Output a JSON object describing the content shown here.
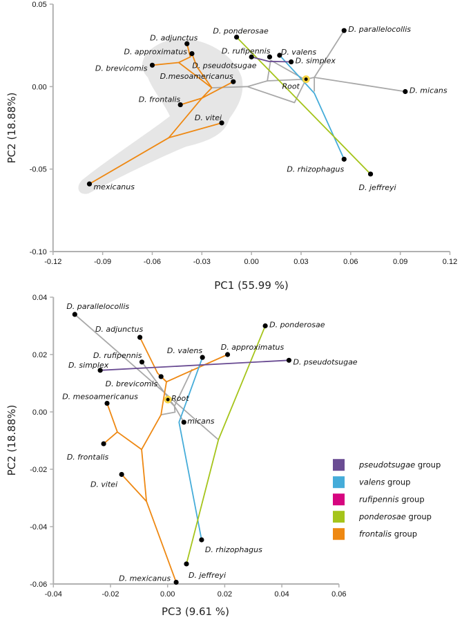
{
  "colors": {
    "pseudotsugae": "#6a4c93",
    "valens": "#45acd9",
    "rufipennis": "#d6067f",
    "ponderosae": "#a5c41a",
    "frontalis": "#ee8812",
    "other": "#a8a8a8",
    "root": "#f5d443",
    "axis": "#b0b0b0",
    "highlight": "#e6e6e6"
  },
  "legend": [
    {
      "italic": "pseudotsugae",
      "suffix": " group",
      "color": "#6a4c93"
    },
    {
      "italic": "valens",
      "suffix": " group",
      "color": "#45acd9"
    },
    {
      "italic": "rufipennis",
      "suffix": " group",
      "color": "#d6067f"
    },
    {
      "italic": "ponderosae",
      "suffix": " group",
      "color": "#a5c41a"
    },
    {
      "italic": "frontalis",
      "suffix": " group",
      "color": "#ee8812"
    }
  ],
  "chart_data": [
    {
      "type": "scatter",
      "subtype": "phylomorphospace",
      "xlabel": "PC1 (55.99 %)",
      "ylabel": "PC2 (18.88%)",
      "xlim": [
        -0.12,
        0.12
      ],
      "ylim": [
        -0.1,
        0.05
      ],
      "xticks": [
        "-0.12",
        "-0.09",
        "-0.06",
        "-0.03",
        "0.00",
        "0.03",
        "0.06",
        "0.09",
        "0.12"
      ],
      "yticks": [
        "0.05",
        "0.00",
        "-0.05",
        "-0.10"
      ],
      "grid": false,
      "shaded_region": "frontalis group",
      "tips": [
        {
          "id": "adjunctus",
          "label": "D. adjunctus",
          "x": -0.039,
          "y": 0.026
        },
        {
          "id": "approximatus",
          "label": "D. approximatus",
          "x": -0.036,
          "y": 0.02
        },
        {
          "id": "brevicomis",
          "label": "D. brevicomis",
          "x": -0.06,
          "y": 0.013
        },
        {
          "id": "mesoamericanus",
          "label": "D.mesoamericanus",
          "x": -0.011,
          "y": 0.003
        },
        {
          "id": "frontalis",
          "label": "D. frontalis",
          "x": -0.043,
          "y": -0.011
        },
        {
          "id": "vitei",
          "label": "D. vitei",
          "x": -0.018,
          "y": -0.022
        },
        {
          "id": "mexicanus",
          "label": "mexicanus",
          "x": -0.098,
          "y": -0.059
        },
        {
          "id": "ponderosae",
          "label": "D. ponderosae",
          "x": -0.009,
          "y": 0.03
        },
        {
          "id": "rufipennis",
          "label": "D. rufipennis",
          "x": 0.0,
          "y": 0.018
        },
        {
          "id": "pseudotsugae",
          "label": "D. pseudotsugae",
          "x": 0.011,
          "y": 0.018
        },
        {
          "id": "valens",
          "label": "D. valens",
          "x": 0.017,
          "y": 0.019
        },
        {
          "id": "simplex",
          "label": "D. simplex",
          "x": 0.024,
          "y": 0.015
        },
        {
          "id": "root",
          "label": "Root",
          "x": 0.033,
          "y": 0.0045
        },
        {
          "id": "parallelocollis",
          "label": "D. parallelocollis",
          "x": 0.056,
          "y": 0.034
        },
        {
          "id": "micans",
          "label": "D. micans",
          "x": 0.093,
          "y": -0.003
        },
        {
          "id": "rhizophagus",
          "label": "D. rhizophagus",
          "x": 0.056,
          "y": -0.044
        },
        {
          "id": "jeffreyi",
          "label": "D. jeffreyi",
          "x": 0.072,
          "y": -0.053
        }
      ],
      "branches": [
        {
          "group": "frontalis",
          "points": [
            [
              -0.06,
              0.013
            ],
            [
              -0.044,
              0.0146
            ],
            [
              -0.037,
              0.018
            ],
            [
              -0.039,
              0.026
            ]
          ]
        },
        {
          "group": "frontalis",
          "points": [
            [
              -0.037,
              0.018
            ],
            [
              -0.036,
              0.02
            ]
          ]
        },
        {
          "group": "frontalis",
          "points": [
            [
              -0.044,
              0.0146
            ],
            [
              -0.024,
              -0.0007
            ]
          ]
        },
        {
          "group": "frontalis",
          "points": [
            [
              -0.036,
              0.02
            ],
            [
              -0.033,
              0.012
            ],
            [
              -0.024,
              -0.0007
            ]
          ]
        },
        {
          "group": "frontalis",
          "points": [
            [
              -0.024,
              -0.0007
            ],
            [
              -0.03,
              -0.007
            ],
            [
              -0.043,
              -0.011
            ]
          ]
        },
        {
          "group": "frontalis",
          "points": [
            [
              -0.03,
              -0.007
            ],
            [
              -0.011,
              0.003
            ]
          ]
        },
        {
          "group": "frontalis",
          "points": [
            [
              -0.03,
              -0.007
            ],
            [
              -0.05,
              -0.031
            ],
            [
              -0.018,
              -0.022
            ]
          ]
        },
        {
          "group": "frontalis",
          "points": [
            [
              -0.05,
              -0.031
            ],
            [
              -0.098,
              -0.059
            ]
          ]
        },
        {
          "group": "other",
          "points": [
            [
              -0.024,
              -0.0007
            ],
            [
              -0.0025,
              0.0
            ],
            [
              0.0096,
              0.0035
            ],
            [
              0.0116,
              0.016
            ]
          ]
        },
        {
          "group": "other",
          "points": [
            [
              0.0096,
              0.0035
            ],
            [
              0.033,
              0.0045
            ],
            [
              0.038,
              0.0056
            ],
            [
              0.056,
              0.034
            ]
          ]
        },
        {
          "group": "other",
          "points": [
            [
              0.038,
              0.0056
            ],
            [
              0.093,
              -0.003
            ]
          ]
        },
        {
          "group": "other",
          "points": [
            [
              0.038,
              0.0056
            ],
            [
              0.038,
              -0.003
            ]
          ]
        },
        {
          "group": "other",
          "points": [
            [
              -0.0025,
              0.0
            ],
            [
              0.026,
              -0.0097
            ],
            [
              0.033,
              0.0045
            ]
          ]
        },
        {
          "group": "other",
          "points": [
            [
              0.0116,
              0.016
            ],
            [
              0.031,
              0.005
            ]
          ]
        },
        {
          "group": "pseudotsugae",
          "points": [
            [
              0.0,
              0.018
            ],
            [
              0.0105,
              0.0153
            ],
            [
              0.024,
              0.015
            ]
          ]
        },
        {
          "group": "valens",
          "points": [
            [
              0.017,
              0.019
            ],
            [
              0.038,
              -0.004
            ],
            [
              0.056,
              -0.044
            ]
          ]
        },
        {
          "group": "ponderosae",
          "points": [
            [
              -0.009,
              0.03
            ],
            [
              0.072,
              -0.053
            ]
          ]
        }
      ]
    },
    {
      "type": "scatter",
      "subtype": "phylomorphospace",
      "xlabel": "PC3 (9.61 %)",
      "ylabel": "PC2 (18.88%)",
      "xlim": [
        -0.04,
        0.06
      ],
      "ylim": [
        -0.06,
        0.04
      ],
      "xticks": [
        "-0.04",
        "-0.02",
        "0.00",
        "0.02",
        "0.04",
        "0.06"
      ],
      "yticks": [
        "0.04",
        "0.02",
        "0.00",
        "-0.02",
        "-0.04",
        "-0.06"
      ],
      "grid": false,
      "legend_position": "right",
      "tips": [
        {
          "id": "parallelocollis",
          "label": "D. parallelocollis",
          "x": -0.0325,
          "y": 0.034
        },
        {
          "id": "adjunctus",
          "label": "D. adjunctus",
          "x": -0.0097,
          "y": 0.026
        },
        {
          "id": "rufipennis",
          "label": "D. rufipennis",
          "x": -0.009,
          "y": 0.0174
        },
        {
          "id": "simplex",
          "label": "D. simplex",
          "x": -0.0236,
          "y": 0.0145
        },
        {
          "id": "brevicomis",
          "label": "D. brevicomis",
          "x": -0.0023,
          "y": 0.0123
        },
        {
          "id": "valens",
          "label": "D. valens",
          "x": 0.0122,
          "y": 0.019
        },
        {
          "id": "approximatus",
          "label": "D. approximatus",
          "x": 0.021,
          "y": 0.02
        },
        {
          "id": "pseudotsugae",
          "label": "D. pseudotsugae",
          "x": 0.0425,
          "y": 0.018
        },
        {
          "id": "ponderosae",
          "label": "D. ponderosae",
          "x": 0.0342,
          "y": 0.03
        },
        {
          "id": "root",
          "label": "Root",
          "x": 0.0001,
          "y": 0.0043
        },
        {
          "id": "mesoamericanus",
          "label": "D. mesoamericanus",
          "x": -0.0212,
          "y": 0.003
        },
        {
          "id": "micans",
          "label": "micans",
          "x": 0.0057,
          "y": -0.0036
        },
        {
          "id": "frontalis",
          "label": "D. frontalis",
          "x": -0.0224,
          "y": -0.0111
        },
        {
          "id": "vitei",
          "label": "D. vitei",
          "x": -0.0161,
          "y": -0.0218
        },
        {
          "id": "rhizophagus",
          "label": "D. rhizophagus",
          "x": 0.0119,
          "y": -0.0446
        },
        {
          "id": "jeffreyi",
          "label": "D. jeffreyi",
          "x": 0.0066,
          "y": -0.053
        },
        {
          "id": "mexicanus",
          "label": "D. mexicanus",
          "x": 0.003,
          "y": -0.0594
        }
      ],
      "branches": [
        {
          "group": "other",
          "points": [
            [
              -0.0325,
              0.034
            ],
            [
              0.0178,
              -0.0097
            ]
          ]
        },
        {
          "group": "other",
          "points": [
            [
              -0.009,
              0.0174
            ],
            [
              0.0024,
              0.002
            ],
            [
              0.0057,
              -0.0036
            ]
          ]
        },
        {
          "group": "other",
          "points": [
            [
              0.0001,
              0.0043
            ],
            [
              0.0024,
              0.002
            ],
            [
              0.0026,
              -0.0001
            ],
            [
              -0.0023,
              -0.001
            ]
          ]
        },
        {
          "group": "other",
          "points": [
            [
              0.0024,
              0.002
            ],
            [
              0.0086,
              0.0149
            ]
          ]
        },
        {
          "group": "frontalis",
          "points": [
            [
              -0.0097,
              0.026
            ],
            [
              -0.0035,
              0.0135
            ],
            [
              -0.0004,
              0.0105
            ]
          ]
        },
        {
          "group": "frontalis",
          "points": [
            [
              -0.0023,
              0.0123
            ],
            [
              -0.0004,
              0.0105
            ]
          ]
        },
        {
          "group": "frontalis",
          "points": [
            [
              0.021,
              0.02
            ],
            [
              -0.0004,
              0.0105
            ]
          ]
        },
        {
          "group": "frontalis",
          "points": [
            [
              -0.0004,
              0.0105
            ],
            [
              -0.0015,
              0.004
            ],
            [
              -0.0023,
              -0.001
            ],
            [
              -0.0091,
              -0.0131
            ]
          ]
        },
        {
          "group": "frontalis",
          "points": [
            [
              -0.0091,
              -0.0131
            ],
            [
              -0.0176,
              -0.007
            ],
            [
              -0.0212,
              0.003
            ]
          ]
        },
        {
          "group": "frontalis",
          "points": [
            [
              -0.0176,
              -0.007
            ],
            [
              -0.0224,
              -0.0111
            ]
          ]
        },
        {
          "group": "frontalis",
          "points": [
            [
              -0.0091,
              -0.0131
            ],
            [
              -0.0074,
              -0.0312
            ],
            [
              -0.0161,
              -0.0218
            ]
          ]
        },
        {
          "group": "frontalis",
          "points": [
            [
              -0.0074,
              -0.0312
            ],
            [
              0.003,
              -0.0594
            ]
          ]
        },
        {
          "group": "pseudotsugae",
          "points": [
            [
              -0.0236,
              0.0145
            ],
            [
              0.0425,
              0.018
            ]
          ]
        },
        {
          "group": "valens",
          "points": [
            [
              0.0122,
              0.019
            ],
            [
              0.004,
              -0.0036
            ],
            [
              0.0119,
              -0.0446
            ]
          ]
        },
        {
          "group": "ponderosae",
          "points": [
            [
              0.0342,
              0.03
            ],
            [
              0.0178,
              -0.0097
            ],
            [
              0.0066,
              -0.053
            ]
          ]
        }
      ]
    }
  ]
}
